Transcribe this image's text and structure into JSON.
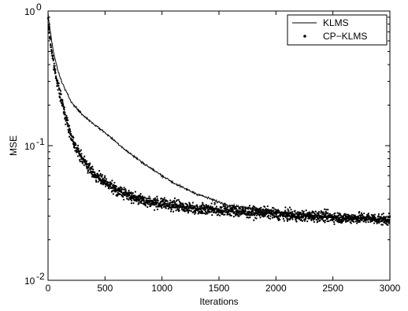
{
  "chart_data": {
    "type": "line",
    "title": "",
    "xlabel": "Iterations",
    "ylabel": "MSE",
    "xlim": [
      0,
      3000
    ],
    "ylim": [
      0.01,
      1
    ],
    "yscale": "log",
    "grid": false,
    "legend_position": "top-right",
    "x_ticks": [
      0,
      500,
      1000,
      1500,
      2000,
      2500,
      3000
    ],
    "x_tick_labels": [
      "0",
      "500",
      "1000",
      "1500",
      "2000",
      "2500",
      "3000"
    ],
    "y_ticks": [
      0.01,
      0.1,
      1
    ],
    "y_tick_labels": [
      {
        "base": "10",
        "exp": "-2"
      },
      {
        "base": "10",
        "exp": "-1"
      },
      {
        "base": "10",
        "exp": "0"
      }
    ],
    "series": [
      {
        "name": "KLMS",
        "style": "solid-line",
        "color": "#000000",
        "x": [
          0,
          25,
          50,
          100,
          150,
          200,
          250,
          300,
          400,
          500,
          600,
          700,
          800,
          900,
          1000,
          1100,
          1200,
          1300,
          1400,
          1500,
          1600,
          1700,
          1800,
          1900,
          2000,
          2200,
          2400,
          2600,
          2800,
          3000
        ],
        "y": [
          0.95,
          0.65,
          0.48,
          0.33,
          0.26,
          0.215,
          0.19,
          0.17,
          0.145,
          0.125,
          0.106,
          0.09,
          0.078,
          0.068,
          0.06,
          0.053,
          0.048,
          0.044,
          0.041,
          0.038,
          0.036,
          0.035,
          0.034,
          0.033,
          0.032,
          0.031,
          0.03,
          0.029,
          0.0285,
          0.028
        ]
      },
      {
        "name": "CP−KLMS",
        "style": "dots",
        "color": "#000000",
        "x": [
          0,
          25,
          50,
          100,
          150,
          200,
          250,
          300,
          350,
          400,
          500,
          600,
          700,
          800,
          900,
          1000,
          1100,
          1200,
          1300,
          1400,
          1500,
          1600,
          1700,
          1800,
          1900,
          2000,
          2200,
          2400,
          2600,
          2800,
          3000
        ],
        "y": [
          0.85,
          0.55,
          0.4,
          0.25,
          0.17,
          0.12,
          0.095,
          0.08,
          0.07,
          0.062,
          0.053,
          0.047,
          0.043,
          0.04,
          0.038,
          0.037,
          0.036,
          0.035,
          0.034,
          0.034,
          0.033,
          0.033,
          0.032,
          0.032,
          0.032,
          0.031,
          0.03,
          0.03,
          0.029,
          0.029,
          0.028
        ]
      }
    ]
  }
}
